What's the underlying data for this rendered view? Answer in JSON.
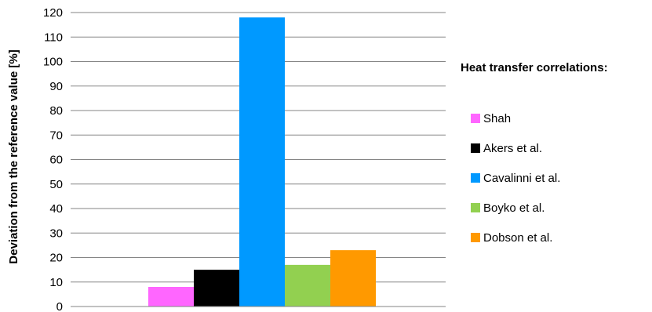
{
  "chart_data": {
    "type": "bar",
    "categories": [
      ""
    ],
    "series": [
      {
        "name": "Shah",
        "values": [
          8
        ],
        "color": "#ff66ff"
      },
      {
        "name": "Akers et al.",
        "values": [
          15
        ],
        "color": "#000000"
      },
      {
        "name": "Cavalinni et al.",
        "values": [
          118
        ],
        "color": "#0099ff"
      },
      {
        "name": "Boyko et al.",
        "values": [
          17
        ],
        "color": "#92d050"
      },
      {
        "name": "Dobson et al.",
        "values": [
          23
        ],
        "color": "#ff9900"
      }
    ],
    "title": "",
    "xlabel": "",
    "ylabel": "Deviation from the reference value [%]",
    "ylim": [
      0,
      120
    ],
    "yticks": [
      "0",
      "10",
      "20",
      "30",
      "40",
      "50",
      "60",
      "70",
      "80",
      "90",
      "100",
      "110",
      "120"
    ],
    "grid": true,
    "legend": {
      "title": "Heat transfer correlations:",
      "position": "right"
    }
  }
}
